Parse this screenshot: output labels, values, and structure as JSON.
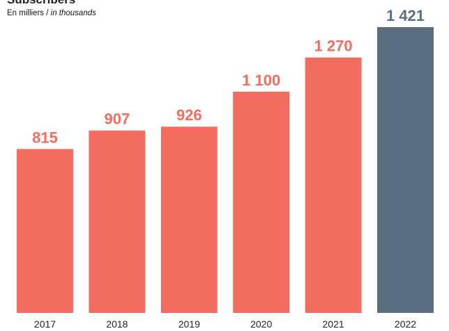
{
  "chart_data": {
    "type": "bar",
    "title": "Subscribers",
    "subtitle_fr": "En milliers",
    "subtitle_sep": " / ",
    "subtitle_en": "in thousands",
    "categories": [
      "2017",
      "2018",
      "2019",
      "2020",
      "2021",
      "2022"
    ],
    "values": [
      815,
      907,
      926,
      1100,
      1270,
      1421
    ],
    "value_labels": [
      "815",
      "907",
      "926",
      "1 100",
      "1 270",
      "1 421"
    ],
    "ylim": [
      0,
      1421
    ],
    "grid": false,
    "legend": "none",
    "colors": {
      "default_bar": "#f26d5f",
      "highlight_bar": "#5a6e81",
      "default_label": "#f26d5f",
      "highlight_label": "#5a6e81"
    },
    "highlight_category": "2022"
  }
}
